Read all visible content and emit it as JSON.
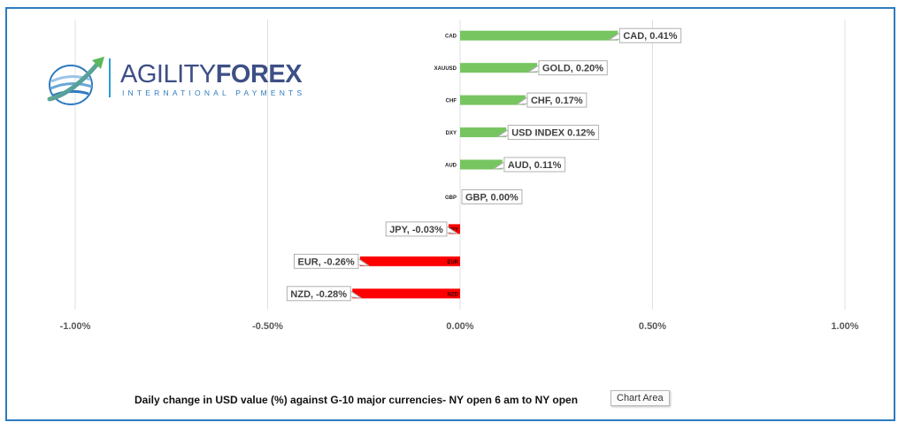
{
  "colors": {
    "positive": "#77c561",
    "negative": "#ff0000",
    "grid": "#e0e0e0",
    "frame": "#2e7bbf",
    "label_border": "#b0b0b0"
  },
  "logo": {
    "word1": "AGILITY",
    "word2": "FOREX",
    "subtitle": "INTERNATIONAL PAYMENTS",
    "icon": "globe-swoosh-icon"
  },
  "caption": "Daily change in  USD value (%)  against  G-10 major currencies- NY open 6 am to NY open",
  "tooltip": "Chart Area",
  "chart_data": {
    "type": "bar",
    "orientation": "horizontal",
    "categories": [
      "CAD",
      "XAUUSD",
      "CHF",
      "DXY",
      "AUD",
      "GBP",
      "JPY",
      "EUR",
      "NZD"
    ],
    "values": [
      0.41,
      0.2,
      0.17,
      0.12,
      0.11,
      0.0,
      -0.03,
      -0.26,
      -0.28
    ],
    "data_labels": [
      "CAD, 0.41%",
      "GOLD, 0.20%",
      "CHF, 0.17%",
      "USD INDEX 0.12%",
      "AUD, 0.11%",
      "GBP, 0.00%",
      "JPY, -0.03%",
      "EUR, -0.26%",
      "NZD, -0.28%"
    ],
    "xlim": [
      -1.0,
      1.0
    ],
    "xticks": [
      -1.0,
      -0.5,
      0.0,
      0.5,
      1.0
    ],
    "xtick_labels": [
      "-1.00%",
      "-0.50%",
      "0.00%",
      "0.50%",
      "1.00%"
    ],
    "gridlines": true,
    "unit": "%"
  }
}
